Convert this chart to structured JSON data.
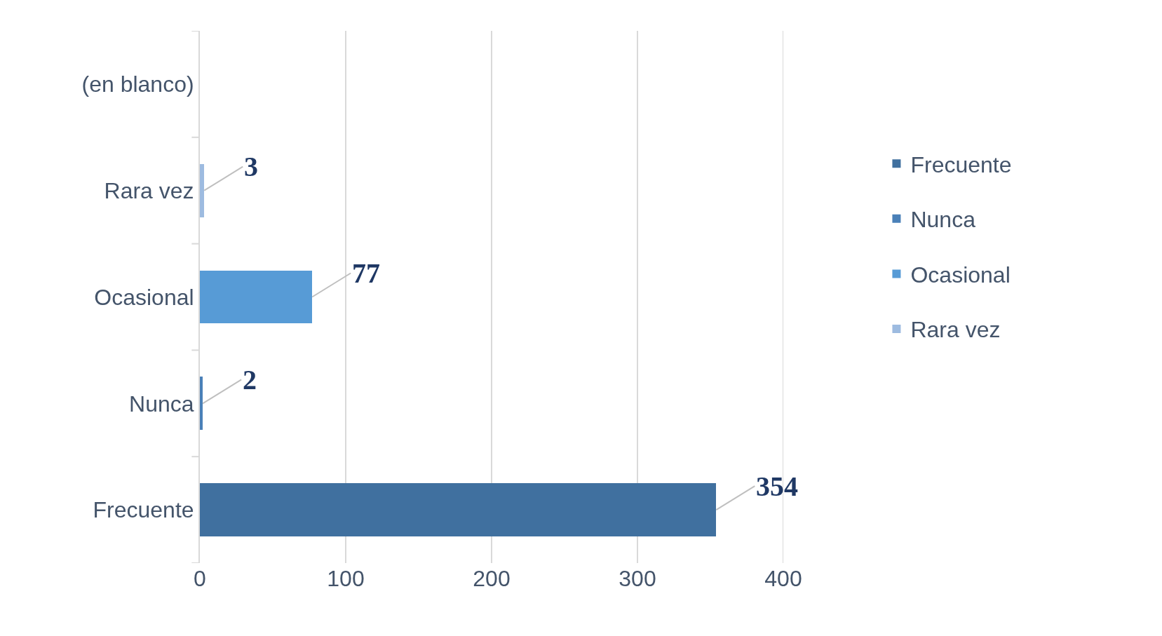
{
  "chart_data": {
    "type": "bar",
    "orientation": "horizontal",
    "stacked": true,
    "categories": [
      "(en blanco)",
      "Rara vez",
      "Ocasional",
      "Nunca",
      "Frecuente"
    ],
    "series": [
      {
        "name": "Frecuente",
        "color": "#40709f",
        "values": [
          null,
          null,
          null,
          null,
          354
        ]
      },
      {
        "name": "Nunca",
        "color": "#4a80b8",
        "values": [
          null,
          null,
          null,
          2,
          null
        ]
      },
      {
        "name": "Ocasional",
        "color": "#579bd6",
        "values": [
          null,
          null,
          77,
          null,
          null
        ]
      },
      {
        "name": "Rara vez",
        "color": "#9dbbe0",
        "values": [
          null,
          3,
          null,
          null,
          null
        ]
      }
    ],
    "xlim": [
      0,
      400
    ],
    "xticks": [
      0,
      100,
      200,
      300,
      400
    ],
    "grid": "x",
    "legend": "right",
    "data_labels": true
  }
}
